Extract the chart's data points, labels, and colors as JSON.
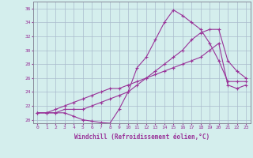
{
  "title": "",
  "xlabel": "Windchill (Refroidissement éolien,°C)",
  "ylabel": "",
  "bg_color": "#d4eeed",
  "line_color": "#993399",
  "grid_color": "#aabbcc",
  "xlim": [
    -0.5,
    23.5
  ],
  "ylim": [
    19.5,
    37.0
  ],
  "yticks": [
    20,
    22,
    24,
    26,
    28,
    30,
    32,
    34,
    36
  ],
  "xticks": [
    0,
    1,
    2,
    3,
    4,
    5,
    6,
    7,
    8,
    9,
    10,
    11,
    12,
    13,
    14,
    15,
    16,
    17,
    18,
    19,
    20,
    21,
    22,
    23
  ],
  "series": [
    [
      21.0,
      21.0,
      21.0,
      21.0,
      20.5,
      20.0,
      19.8,
      19.6,
      19.5,
      21.5,
      24.0,
      27.5,
      29.0,
      31.5,
      34.0,
      35.8,
      35.0,
      34.0,
      33.0,
      31.0,
      28.5,
      25.5,
      25.5,
      25.5
    ],
    [
      21.0,
      21.0,
      21.0,
      21.5,
      21.5,
      21.5,
      22.0,
      22.5,
      23.0,
      23.5,
      24.0,
      25.0,
      26.0,
      27.0,
      28.0,
      29.0,
      30.0,
      31.5,
      32.5,
      33.0,
      33.0,
      28.5,
      27.0,
      26.0
    ],
    [
      21.0,
      21.0,
      21.5,
      22.0,
      22.5,
      23.0,
      23.5,
      24.0,
      24.5,
      24.5,
      25.0,
      25.5,
      26.0,
      26.5,
      27.0,
      27.5,
      28.0,
      28.5,
      29.0,
      30.0,
      31.0,
      25.0,
      24.5,
      25.0
    ]
  ]
}
